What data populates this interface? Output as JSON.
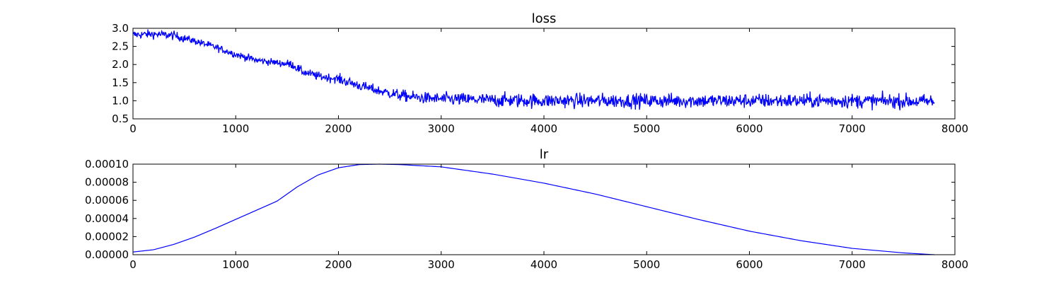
{
  "chart_data": [
    {
      "type": "line",
      "title": "loss",
      "xlabel": "",
      "ylabel": "",
      "xlim": [
        0,
        8000
      ],
      "ylim": [
        0.5,
        3.0
      ],
      "xticks": [
        0,
        1000,
        2000,
        3000,
        4000,
        5000,
        6000,
        7000,
        8000
      ],
      "yticks": [
        0.5,
        1.0,
        1.5,
        2.0,
        2.5,
        3.0
      ],
      "xtick_labels": [
        "0",
        "1000",
        "2000",
        "3000",
        "4000",
        "5000",
        "6000",
        "7000",
        "8000"
      ],
      "ytick_labels": [
        "0.5",
        "1.0",
        "1.5",
        "2.0",
        "2.5",
        "3.0"
      ],
      "grid": false,
      "color": "#0000ff",
      "noise": [
        0.06,
        0.05,
        0.05,
        0.06,
        0.07,
        0.08,
        0.09,
        0.1,
        0.1,
        0.1,
        0.1,
        0.1,
        0.1,
        0.1,
        0.1,
        0.1
      ],
      "series": [
        {
          "name": "",
          "x": [
            0,
            200,
            400,
            600,
            800,
            1000,
            1200,
            1400,
            1550,
            1650,
            1800,
            2000,
            2200,
            2400,
            2600,
            2800,
            3000,
            3500,
            4000,
            5000,
            6000,
            7000,
            7800
          ],
          "y": [
            2.82,
            2.84,
            2.8,
            2.65,
            2.48,
            2.28,
            2.12,
            2.05,
            2.0,
            1.8,
            1.68,
            1.6,
            1.42,
            1.27,
            1.15,
            1.08,
            1.05,
            1.02,
            1.0,
            1.0,
            1.0,
            1.0,
            0.98
          ]
        }
      ]
    },
    {
      "type": "line",
      "title": "lr",
      "xlabel": "",
      "ylabel": "",
      "xlim": [
        0,
        8000
      ],
      "ylim": [
        0,
        0.0001
      ],
      "xticks": [
        0,
        1000,
        2000,
        3000,
        4000,
        5000,
        6000,
        7000,
        8000
      ],
      "yticks": [
        0,
        2e-05,
        4e-05,
        6e-05,
        8e-05,
        0.0001
      ],
      "xtick_labels": [
        "0",
        "1000",
        "2000",
        "3000",
        "4000",
        "5000",
        "6000",
        "7000",
        "8000"
      ],
      "ytick_labels": [
        "0.00000",
        "0.00002",
        "0.00004",
        "0.00006",
        "0.00008",
        "0.00010"
      ],
      "grid": false,
      "color": "#0000ff",
      "series": [
        {
          "name": "",
          "x": [
            0,
            200,
            400,
            600,
            800,
            1000,
            1200,
            1400,
            1600,
            1800,
            2000,
            2200,
            2400,
            2600,
            3000,
            3500,
            4000,
            4500,
            5000,
            5500,
            6000,
            6500,
            7000,
            7500,
            7800
          ],
          "y": [
            3e-06,
            5.5e-06,
            1.15e-05,
            1.95e-05,
            2.9e-05,
            3.9e-05,
            4.9e-05,
            5.9e-05,
            7.5e-05,
            8.8e-05,
            9.6e-05,
            9.95e-05,
            0.0001,
            9.95e-05,
            9.7e-05,
            8.9e-05,
            7.9e-05,
            6.7e-05,
            5.3e-05,
            3.9e-05,
            2.6e-05,
            1.55e-05,
            7e-06,
            2e-06,
            0.0
          ]
        }
      ]
    }
  ]
}
